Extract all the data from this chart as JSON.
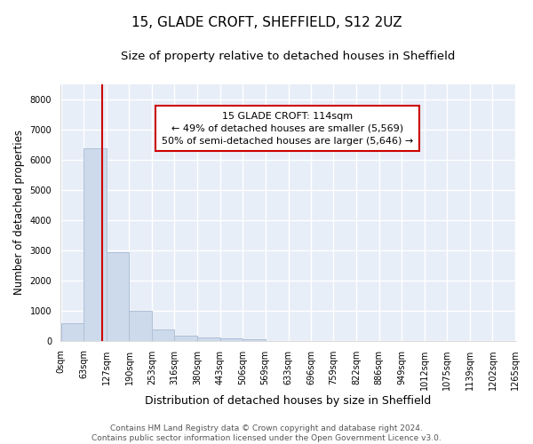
{
  "title": "15, GLADE CROFT, SHEFFIELD, S12 2UZ",
  "subtitle": "Size of property relative to detached houses in Sheffield",
  "xlabel": "Distribution of detached houses by size in Sheffield",
  "ylabel": "Number of detached properties",
  "bar_color": "#cddaeb",
  "bar_edge_color": "#aec0d8",
  "background_color": "#e8eef7",
  "grid_color": "white",
  "bin_edges": [
    0,
    63,
    127,
    190,
    253,
    316,
    380,
    443,
    506,
    569,
    633,
    696,
    759,
    822,
    886,
    949,
    1012,
    1075,
    1139,
    1202,
    1265
  ],
  "bar_heights": [
    570,
    6400,
    2930,
    990,
    370,
    155,
    110,
    80,
    60,
    0,
    0,
    0,
    0,
    0,
    0,
    0,
    0,
    0,
    0,
    0
  ],
  "red_line_x": 114,
  "ylim": [
    0,
    8500
  ],
  "yticks": [
    0,
    1000,
    2000,
    3000,
    4000,
    5000,
    6000,
    7000,
    8000
  ],
  "annotation_title": "15 GLADE CROFT: 114sqm",
  "annotation_line1": "← 49% of detached houses are smaller (5,569)",
  "annotation_line2": "50% of semi-detached houses are larger (5,646) →",
  "annotation_box_color": "white",
  "annotation_box_edge_color": "#cc0000",
  "red_line_color": "#cc0000",
  "footer_line1": "Contains HM Land Registry data © Crown copyright and database right 2024.",
  "footer_line2": "Contains public sector information licensed under the Open Government Licence v3.0.",
  "title_fontsize": 11,
  "subtitle_fontsize": 9.5,
  "xlabel_fontsize": 9,
  "ylabel_fontsize": 8.5,
  "tick_fontsize": 7,
  "annotation_fontsize": 8,
  "footer_fontsize": 6.5
}
